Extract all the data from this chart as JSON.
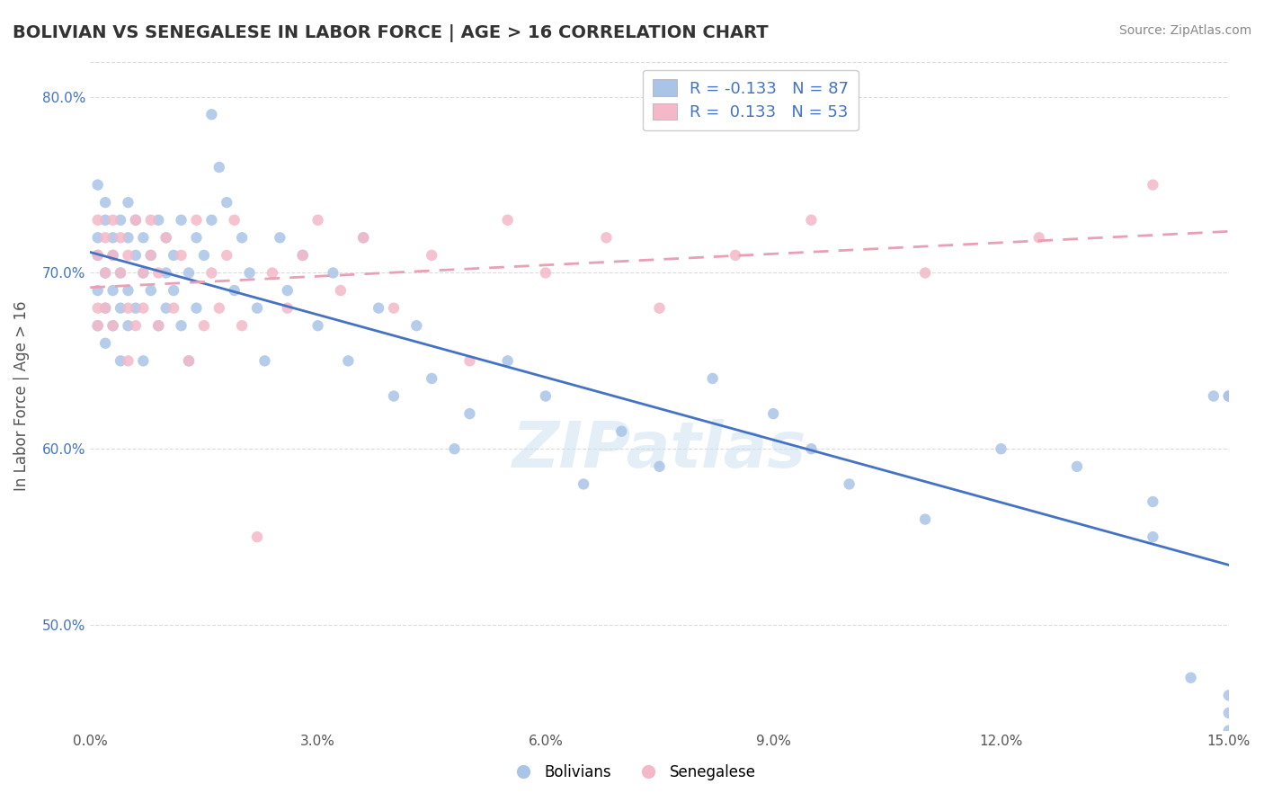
{
  "title": "BOLIVIAN VS SENEGALESE IN LABOR FORCE | AGE > 16 CORRELATION CHART",
  "source": "Source: ZipAtlas.com",
  "xlabel": "",
  "ylabel": "In Labor Force | Age > 16",
  "xlim": [
    0.0,
    0.15
  ],
  "ylim": [
    0.44,
    0.82
  ],
  "xticks": [
    0.0,
    0.03,
    0.06,
    0.09,
    0.12,
    0.15
  ],
  "yticks": [
    0.5,
    0.6,
    0.7,
    0.8
  ],
  "ytick_labels": [
    "50.0%",
    "60.0%",
    "70.0%",
    "80.0%"
  ],
  "xtick_labels": [
    "0.0%",
    "3.0%",
    "6.0%",
    "9.0%",
    "12.0%",
    "15.0%"
  ],
  "bolivian_color": "#aac4e8",
  "senegalese_color": "#f4b8c8",
  "trend_bolivian_color": "#4472c4",
  "trend_senegalese_color": "#f4b8c8",
  "R_bolivian": -0.133,
  "N_bolivian": 87,
  "R_senegalese": 0.133,
  "N_senegalese": 53,
  "seed_bolivian": 42,
  "seed_senegalese": 99,
  "background_color": "#ffffff",
  "grid_color": "#cccccc",
  "watermark": "ZIPatlas",
  "bolivian_x": [
    0.001,
    0.001,
    0.001,
    0.001,
    0.001,
    0.002,
    0.002,
    0.002,
    0.002,
    0.002,
    0.003,
    0.003,
    0.003,
    0.003,
    0.004,
    0.004,
    0.004,
    0.004,
    0.005,
    0.005,
    0.005,
    0.005,
    0.006,
    0.006,
    0.006,
    0.007,
    0.007,
    0.007,
    0.008,
    0.008,
    0.009,
    0.009,
    0.01,
    0.01,
    0.01,
    0.011,
    0.011,
    0.012,
    0.012,
    0.013,
    0.013,
    0.014,
    0.014,
    0.015,
    0.016,
    0.016,
    0.017,
    0.018,
    0.019,
    0.02,
    0.021,
    0.022,
    0.023,
    0.025,
    0.026,
    0.028,
    0.03,
    0.032,
    0.034,
    0.036,
    0.038,
    0.04,
    0.043,
    0.045,
    0.048,
    0.05,
    0.055,
    0.06,
    0.065,
    0.07,
    0.075,
    0.082,
    0.09,
    0.095,
    0.1,
    0.11,
    0.12,
    0.13,
    0.14,
    0.14,
    0.145,
    0.148,
    0.15,
    0.15,
    0.15,
    0.15,
    0.15
  ],
  "bolivian_y": [
    0.69,
    0.72,
    0.75,
    0.67,
    0.71,
    0.73,
    0.7,
    0.68,
    0.74,
    0.66,
    0.72,
    0.69,
    0.67,
    0.71,
    0.73,
    0.7,
    0.68,
    0.65,
    0.74,
    0.72,
    0.69,
    0.67,
    0.71,
    0.73,
    0.68,
    0.7,
    0.72,
    0.65,
    0.69,
    0.71,
    0.73,
    0.67,
    0.7,
    0.72,
    0.68,
    0.69,
    0.71,
    0.73,
    0.67,
    0.7,
    0.65,
    0.72,
    0.68,
    0.71,
    0.79,
    0.73,
    0.76,
    0.74,
    0.69,
    0.72,
    0.7,
    0.68,
    0.65,
    0.72,
    0.69,
    0.71,
    0.67,
    0.7,
    0.65,
    0.72,
    0.68,
    0.63,
    0.67,
    0.64,
    0.6,
    0.62,
    0.65,
    0.63,
    0.58,
    0.61,
    0.59,
    0.64,
    0.62,
    0.6,
    0.58,
    0.56,
    0.6,
    0.59,
    0.57,
    0.55,
    0.47,
    0.63,
    0.46,
    0.45,
    0.63,
    0.44,
    0.63
  ],
  "senegalese_x": [
    0.001,
    0.001,
    0.001,
    0.001,
    0.002,
    0.002,
    0.002,
    0.003,
    0.003,
    0.003,
    0.004,
    0.004,
    0.005,
    0.005,
    0.005,
    0.006,
    0.006,
    0.007,
    0.007,
    0.008,
    0.008,
    0.009,
    0.009,
    0.01,
    0.011,
    0.012,
    0.013,
    0.014,
    0.015,
    0.016,
    0.017,
    0.018,
    0.019,
    0.02,
    0.022,
    0.024,
    0.026,
    0.028,
    0.03,
    0.033,
    0.036,
    0.04,
    0.045,
    0.05,
    0.055,
    0.06,
    0.068,
    0.075,
    0.085,
    0.095,
    0.11,
    0.125,
    0.14
  ],
  "senegalese_y": [
    0.68,
    0.71,
    0.73,
    0.67,
    0.7,
    0.72,
    0.68,
    0.71,
    0.73,
    0.67,
    0.7,
    0.72,
    0.68,
    0.71,
    0.65,
    0.73,
    0.67,
    0.7,
    0.68,
    0.71,
    0.73,
    0.67,
    0.7,
    0.72,
    0.68,
    0.71,
    0.65,
    0.73,
    0.67,
    0.7,
    0.68,
    0.71,
    0.73,
    0.67,
    0.55,
    0.7,
    0.68,
    0.71,
    0.73,
    0.69,
    0.72,
    0.68,
    0.71,
    0.65,
    0.73,
    0.7,
    0.72,
    0.68,
    0.71,
    0.73,
    0.7,
    0.72,
    0.75
  ]
}
